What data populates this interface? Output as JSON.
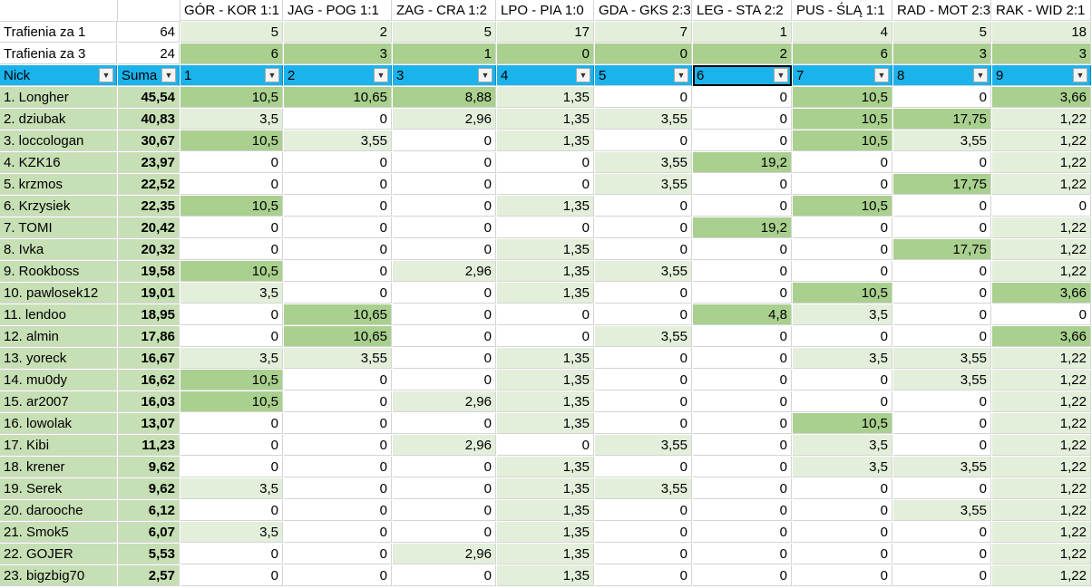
{
  "matches": [
    "GÓR - KOR 1:1",
    "JAG - POG 1:1",
    "ZAG - CRA 1:2",
    "LPO - PIA 1:0",
    "GDA - GKS 2:3",
    "LEG - STA 2:2",
    "PUS - ŚLĄ 1:1",
    "RAD - MOT 2:3",
    "RAK - WID 2:1"
  ],
  "stats": [
    {
      "label": "Trafienia za 1",
      "total": "64",
      "values": [
        "5",
        "2",
        "5",
        "17",
        "7",
        "1",
        "4",
        "5",
        "18"
      ]
    },
    {
      "label": "Trafienia za 3",
      "total": "24",
      "values": [
        "6",
        "3",
        "1",
        "0",
        "0",
        "2",
        "6",
        "3",
        "3"
      ]
    }
  ],
  "header": {
    "nick": "Nick",
    "suma": "Suma",
    "cols": [
      "1",
      "2",
      "3",
      "4",
      "5",
      "6",
      "7",
      "8",
      "9"
    ],
    "filter_icon": "dropdown-arrow-icon"
  },
  "colors": {
    "header": "#1ab3ec",
    "low": "#e3efda",
    "high": "#a9d08e",
    "name": "#c6dfb4"
  },
  "rows": [
    {
      "nick": "1.  Longher",
      "suma": "45,54",
      "values": [
        "10,5",
        "10,65",
        "8,88",
        "1,35",
        "0",
        "0",
        "10,5",
        "0",
        "3,66"
      ]
    },
    {
      "nick": "2.  dziubak",
      "suma": "40,83",
      "values": [
        "3,5",
        "0",
        "2,96",
        "1,35",
        "3,55",
        "0",
        "10,5",
        "17,75",
        "1,22"
      ]
    },
    {
      "nick": "3.  loccologan",
      "suma": "30,67",
      "values": [
        "10,5",
        "3,55",
        "0",
        "1,35",
        "0",
        "0",
        "10,5",
        "3,55",
        "1,22"
      ]
    },
    {
      "nick": "4.  KZK16",
      "suma": "23,97",
      "values": [
        "0",
        "0",
        "0",
        "0",
        "3,55",
        "19,2",
        "0",
        "0",
        "1,22"
      ]
    },
    {
      "nick": "5.  krzmos",
      "suma": "22,52",
      "values": [
        "0",
        "0",
        "0",
        "0",
        "3,55",
        "0",
        "0",
        "17,75",
        "1,22"
      ]
    },
    {
      "nick": "6.  Krzysiek",
      "suma": "22,35",
      "values": [
        "10,5",
        "0",
        "0",
        "1,35",
        "0",
        "0",
        "10,5",
        "0",
        "0"
      ]
    },
    {
      "nick": "7.  TOMI",
      "suma": "20,42",
      "values": [
        "0",
        "0",
        "0",
        "0",
        "0",
        "19,2",
        "0",
        "0",
        "1,22"
      ]
    },
    {
      "nick": "8.  Ivka",
      "suma": "20,32",
      "values": [
        "0",
        "0",
        "0",
        "1,35",
        "0",
        "0",
        "0",
        "17,75",
        "1,22"
      ]
    },
    {
      "nick": "9.  Rookboss",
      "suma": "19,58",
      "values": [
        "10,5",
        "0",
        "2,96",
        "1,35",
        "3,55",
        "0",
        "0",
        "0",
        "1,22"
      ]
    },
    {
      "nick": "10.  pawlosek12",
      "suma": "19,01",
      "values": [
        "3,5",
        "0",
        "0",
        "1,35",
        "0",
        "0",
        "10,5",
        "0",
        "3,66"
      ]
    },
    {
      "nick": "11.  lendoo",
      "suma": "18,95",
      "values": [
        "0",
        "10,65",
        "0",
        "0",
        "0",
        "4,8",
        "3,5",
        "0",
        "0"
      ]
    },
    {
      "nick": "12.  almin",
      "suma": "17,86",
      "values": [
        "0",
        "10,65",
        "0",
        "0",
        "3,55",
        "0",
        "0",
        "0",
        "3,66"
      ]
    },
    {
      "nick": "13.  yoreck",
      "suma": "16,67",
      "values": [
        "3,5",
        "3,55",
        "0",
        "1,35",
        "0",
        "0",
        "3,5",
        "3,55",
        "1,22"
      ]
    },
    {
      "nick": "14.  mu0dy",
      "suma": "16,62",
      "values": [
        "10,5",
        "0",
        "0",
        "1,35",
        "0",
        "0",
        "0",
        "3,55",
        "1,22"
      ]
    },
    {
      "nick": "15.  ar2007",
      "suma": "16,03",
      "values": [
        "10,5",
        "0",
        "2,96",
        "1,35",
        "0",
        "0",
        "0",
        "0",
        "1,22"
      ]
    },
    {
      "nick": "16.  lowolak",
      "suma": "13,07",
      "values": [
        "0",
        "0",
        "0",
        "1,35",
        "0",
        "0",
        "10,5",
        "0",
        "1,22"
      ]
    },
    {
      "nick": "17.  Kibi",
      "suma": "11,23",
      "values": [
        "0",
        "0",
        "2,96",
        "0",
        "3,55",
        "0",
        "3,5",
        "0",
        "1,22"
      ]
    },
    {
      "nick": "18.  krener",
      "suma": "9,62",
      "values": [
        "0",
        "0",
        "0",
        "1,35",
        "0",
        "0",
        "3,5",
        "3,55",
        "1,22"
      ]
    },
    {
      "nick": "19.  Serek",
      "suma": "9,62",
      "values": [
        "3,5",
        "0",
        "0",
        "1,35",
        "3,55",
        "0",
        "0",
        "0",
        "1,22"
      ]
    },
    {
      "nick": "20.  darooche",
      "suma": "6,12",
      "values": [
        "0",
        "0",
        "0",
        "1,35",
        "0",
        "0",
        "0",
        "3,55",
        "1,22"
      ]
    },
    {
      "nick": "21.  Smok5",
      "suma": "6,07",
      "values": [
        "3,5",
        "0",
        "0",
        "1,35",
        "0",
        "0",
        "0",
        "0",
        "1,22"
      ]
    },
    {
      "nick": "22.  GOJER",
      "suma": "5,53",
      "values": [
        "0",
        "0",
        "2,96",
        "1,35",
        "0",
        "0",
        "0",
        "0",
        "1,22"
      ]
    },
    {
      "nick": "23.  bigzbig70",
      "suma": "2,57",
      "values": [
        "0",
        "0",
        "0",
        "1,35",
        "0",
        "0",
        "0",
        "0",
        "1,22"
      ]
    }
  ]
}
